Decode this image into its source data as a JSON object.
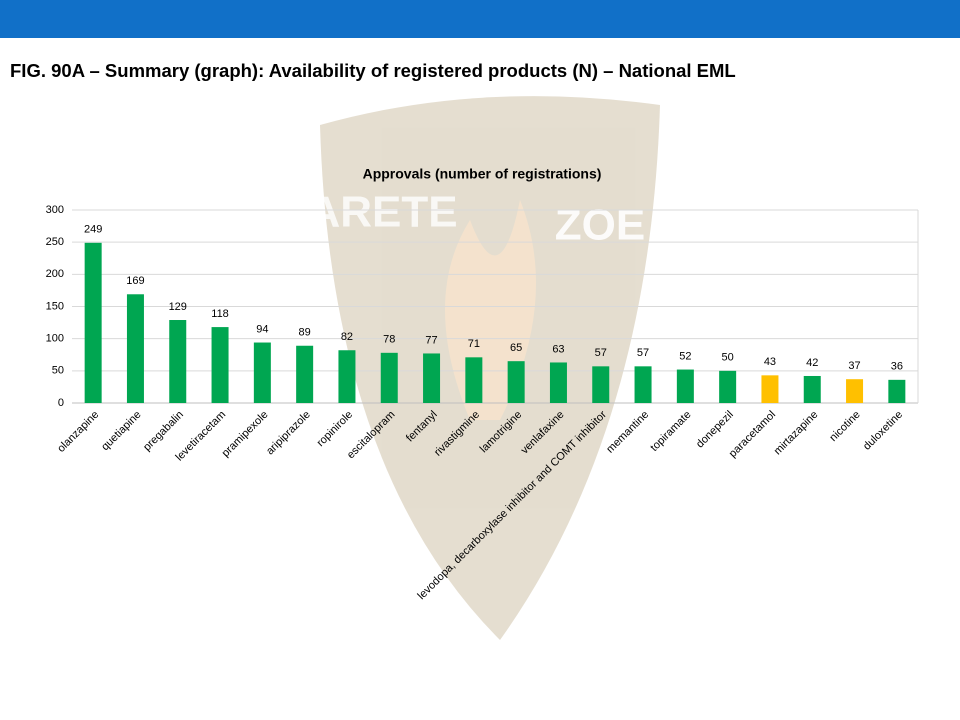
{
  "slide_title": "FIG. 90A – Summary (graph): Availability of registered products (N) – National EML",
  "watermark": {
    "left": "ARETE",
    "right": "ZOE"
  },
  "chart_data": {
    "type": "bar",
    "title": "Approvals (number of registrations)",
    "categories": [
      "olanzapine",
      "quetiapine",
      "pregabalin",
      "levetiracetam",
      "pramipexole",
      "aripiprazole",
      "ropinirole",
      "escitalopram",
      "fentanyl",
      "rivastigmine",
      "lamotrigine",
      "venlafaxine",
      "levodopa, decarboxylase inhibitor and COMT inhibitor",
      "memantine",
      "topiramate",
      "donepezil",
      "paracetamol",
      "mirtazapine",
      "nicotine",
      "duloxetine"
    ],
    "values": [
      249,
      169,
      129,
      118,
      94,
      89,
      82,
      78,
      77,
      71,
      65,
      63,
      57,
      57,
      52,
      50,
      43,
      42,
      37,
      36
    ],
    "colors": [
      "#00a651",
      "#00a651",
      "#00a651",
      "#00a651",
      "#00a651",
      "#00a651",
      "#00a651",
      "#00a651",
      "#00a651",
      "#00a651",
      "#00a651",
      "#00a651",
      "#00a651",
      "#00a651",
      "#00a651",
      "#00a651",
      "#ffc000",
      "#00a651",
      "#ffc000",
      "#00a651"
    ],
    "ylim": [
      0,
      300
    ],
    "yticks": [
      0,
      50,
      100,
      150,
      200,
      250,
      300
    ],
    "grid": true
  }
}
